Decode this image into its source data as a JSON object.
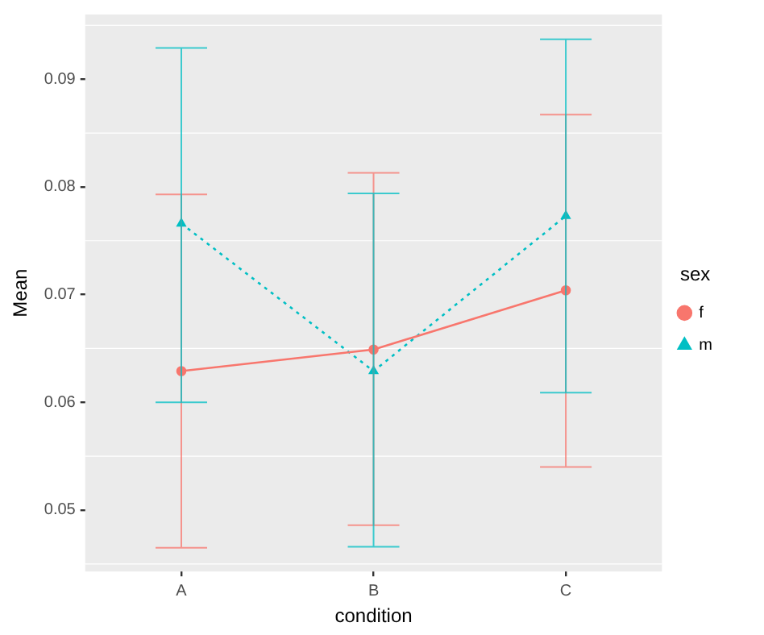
{
  "chart_data": {
    "type": "line",
    "xlabel": "condition",
    "ylabel": "Mean",
    "legend_title": "sex",
    "categories": [
      "A",
      "B",
      "C"
    ],
    "series": [
      {
        "name": "f",
        "color": "#f8766d",
        "marker": "circle",
        "line_style": "solid",
        "values": [
          0.0629,
          0.0649,
          0.0704
        ],
        "errors": [
          [
            0.0465,
            0.0793
          ],
          [
            0.0486,
            0.0813
          ],
          [
            0.054,
            0.0867
          ]
        ]
      },
      {
        "name": "m",
        "color": "#00bfc4",
        "marker": "triangle",
        "line_style": "dotted",
        "values": [
          0.0766,
          0.0629,
          0.0773
        ],
        "errors": [
          [
            0.06,
            0.0929
          ],
          [
            0.0466,
            0.0794
          ],
          [
            0.0609,
            0.0937
          ]
        ]
      }
    ],
    "ylim": [
      0.0443,
      0.096
    ],
    "yticks": [
      0.05,
      0.06,
      0.07,
      0.08,
      0.09
    ],
    "grid": true,
    "legend": "right"
  }
}
